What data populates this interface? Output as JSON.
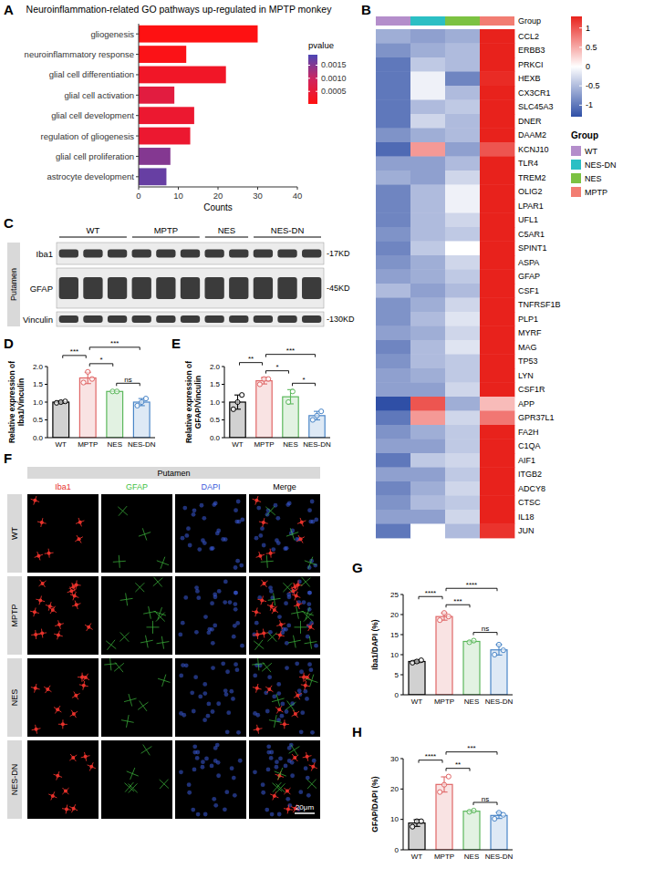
{
  "chart_data": [
    {
      "type": "bar",
      "panel_label": "A",
      "title": "Neuroinflammation-related GO pathways up-regulated in MPTP monkey",
      "orientation": "horizontal",
      "categories": [
        "gliogenesis",
        "neuroinflammatory response",
        "glial cell differentiation",
        "glial cell activation",
        "glial cell development",
        "regulation of gliogenesis",
        "glial cell proliferation",
        "astrocyte development"
      ],
      "values": [
        30,
        12,
        22,
        9,
        14,
        13,
        8,
        7
      ],
      "color_values": [
        5e-05,
        0.0001,
        0.0003,
        0.0006,
        0.0004,
        0.0004,
        0.0015,
        0.0017
      ],
      "color_range": [
        2e-05,
        0.0019
      ],
      "color_ticks": [
        0.0005,
        {
          "value": 0.001,
          "label": "0.0010"
        },
        0.0015
      ],
      "color_label": "pvalue",
      "xlabel": "Counts",
      "xlim": [
        0,
        40
      ],
      "xticks": [
        0,
        10,
        20,
        30,
        40
      ],
      "grid": false
    },
    {
      "type": "heatmap",
      "panel_label": "B",
      "rows": [
        "CCL2",
        "ERBB3",
        "PRKCI",
        "HEXB",
        "CX3CR1",
        "SLC45A3",
        "DNER",
        "DAAM2",
        "KCNJ10",
        "TLR4",
        "TREM2",
        "OLIG2",
        "LPAR1",
        "UFL1",
        "C5AR1",
        "SPINT1",
        "ASPA",
        "GFAP",
        "CSF1",
        "TNFRSF1B",
        "PLP1",
        "MYRF",
        "MAG",
        "TP53",
        "LYN",
        "CSF1R",
        "APP",
        "GPR37L1",
        "FA2H",
        "C1QA",
        "AIF1",
        "ITGB2",
        "ADCY8",
        "CTSC",
        "IL18",
        "JUN"
      ],
      "series": [
        {
          "name": "WT",
          "color": "#b48ecb",
          "values": [
            -0.6,
            -0.8,
            -1.0,
            -1.0,
            -1.0,
            -1.0,
            -1.0,
            -0.8,
            -1.1,
            -0.7,
            -0.6,
            -0.9,
            -0.9,
            -0.9,
            -0.8,
            -0.9,
            -0.8,
            -0.7,
            -0.5,
            -0.8,
            -0.8,
            -0.7,
            -0.9,
            -0.8,
            -0.7,
            -0.7,
            -1.3,
            -1.0,
            -0.8,
            -0.7,
            -1.0,
            -0.7,
            -0.9,
            -0.8,
            -0.7,
            -1.0
          ]
        },
        {
          "name": "NES-DN",
          "color": "#2bbfc4",
          "values": [
            -0.7,
            -0.6,
            -0.4,
            -0.1,
            -0.1,
            -0.5,
            -0.3,
            -0.6,
            0.6,
            -0.7,
            -0.7,
            -0.5,
            -0.5,
            -0.5,
            -0.5,
            -0.4,
            -0.6,
            -0.6,
            -0.7,
            -0.6,
            -0.5,
            -0.6,
            -0.5,
            -0.5,
            -0.6,
            -0.7,
            1.0,
            0.6,
            -0.6,
            -0.7,
            -0.4,
            -0.7,
            -0.6,
            -0.5,
            -0.7,
            0.0
          ]
        },
        {
          "name": "NES",
          "color": "#7cc242",
          "values": [
            -0.6,
            -0.5,
            -0.5,
            -0.9,
            -0.5,
            -0.4,
            -0.5,
            -0.5,
            -0.7,
            -0.5,
            -0.3,
            -0.1,
            -0.1,
            -0.3,
            -0.4,
            0.0,
            -0.3,
            -0.4,
            -0.5,
            -0.3,
            -0.2,
            -0.3,
            -0.2,
            -0.4,
            -0.4,
            -0.3,
            -0.6,
            -0.3,
            -0.4,
            -0.4,
            -0.3,
            -0.4,
            -0.3,
            -0.4,
            -0.3,
            -0.5
          ]
        },
        {
          "name": "MPTP",
          "color": "#f27d72",
          "values": [
            1.3,
            1.3,
            1.3,
            1.25,
            1.3,
            1.3,
            1.3,
            1.3,
            1.0,
            1.3,
            1.3,
            1.3,
            1.3,
            1.3,
            1.3,
            1.3,
            1.3,
            1.3,
            1.3,
            1.3,
            1.3,
            1.3,
            1.3,
            1.3,
            1.3,
            1.3,
            0.4,
            0.8,
            1.3,
            1.3,
            1.3,
            1.3,
            1.3,
            1.3,
            1.3,
            1.2
          ]
        }
      ],
      "group_label": "Group",
      "legend_title": "Group",
      "color_range": [
        -1.3,
        1.3
      ],
      "color_ticks": [
        1,
        0.5,
        0,
        -0.5,
        -1
      ]
    },
    {
      "type": "bar",
      "panel_label": "D",
      "ylabel": "Relative expression of Iba1/Vinculin",
      "categories": [
        "WT",
        "MPTP",
        "NES",
        "NES-DN"
      ],
      "values": [
        1.0,
        1.68,
        1.3,
        1.0
      ],
      "errors": [
        0.03,
        0.16,
        0.0,
        0.1
      ],
      "points": [
        [
          0.98,
          1.0,
          1.02
        ],
        [
          1.55,
          1.85,
          1.65
        ],
        [
          1.3,
          1.3
        ],
        [
          0.9,
          1.0,
          1.1
        ]
      ],
      "colors": [
        "#000000",
        "#e06666",
        "#5cb85c",
        "#4a86c8"
      ],
      "ylim": [
        0,
        2
      ],
      "yticks": [
        {
          "value": 0,
          "label": "0.0"
        },
        {
          "value": 0.5,
          "label": "0.5"
        },
        {
          "value": 1,
          "label": "1.0"
        },
        {
          "value": 1.5,
          "label": "1.5"
        },
        {
          "value": 2,
          "label": "2.0"
        }
      ],
      "grid": false,
      "comparisons": [
        {
          "groups": [
            2,
            3
          ],
          "label": "ns"
        },
        {
          "groups": [
            1,
            2
          ],
          "label": "*"
        },
        {
          "groups": [
            0,
            1
          ],
          "label": "***"
        },
        {
          "groups": [
            1,
            3
          ],
          "label": "***"
        }
      ]
    },
    {
      "type": "bar",
      "panel_label": "E",
      "ylabel": "Relative expression of GFAP/Vinculin",
      "categories": [
        "WT",
        "MPTP",
        "NES",
        "NES-DN"
      ],
      "values": [
        1.0,
        1.6,
        1.15,
        0.62
      ],
      "errors": [
        0.2,
        0.09,
        0.2,
        0.12
      ],
      "points": [
        [
          0.8,
          1.0,
          1.2
        ],
        [
          1.5,
          1.65,
          1.65
        ],
        [
          1.0,
          1.3
        ],
        [
          0.5,
          0.62,
          0.74
        ]
      ],
      "colors": [
        "#000000",
        "#e06666",
        "#5cb85c",
        "#4a86c8"
      ],
      "ylim": [
        0,
        2
      ],
      "yticks": [
        {
          "value": 0,
          "label": "0.0"
        },
        {
          "value": 0.5,
          "label": "0.5"
        },
        {
          "value": 1,
          "label": "1.0"
        },
        {
          "value": 1.5,
          "label": "1.5"
        },
        {
          "value": 2,
          "label": "2.0"
        }
      ],
      "grid": false,
      "comparisons": [
        {
          "groups": [
            2,
            3
          ],
          "label": "*"
        },
        {
          "groups": [
            1,
            2
          ],
          "label": "*"
        },
        {
          "groups": [
            0,
            1
          ],
          "label": "**"
        },
        {
          "groups": [
            1,
            3
          ],
          "label": "***"
        }
      ]
    },
    {
      "type": "bar",
      "panel_label": "G",
      "ylabel": "Iba1/DAPI (%)",
      "categories": [
        "WT",
        "MPTP",
        "NES",
        "NES-DN"
      ],
      "values": [
        8.3,
        19.5,
        13.3,
        11.2
      ],
      "errors": [
        0.3,
        0.9,
        0.2,
        1.3
      ],
      "points": [
        [
          8.0,
          8.3,
          8.6
        ],
        [
          18.6,
          20.4,
          19.5
        ],
        [
          13.1,
          13.5
        ],
        [
          10.0,
          12.5,
          11.1
        ]
      ],
      "colors": [
        "#000000",
        "#e06666",
        "#5cb85c",
        "#4a86c8"
      ],
      "ylim": [
        0,
        25
      ],
      "yticks": [
        0,
        5,
        10,
        15,
        20,
        25
      ],
      "grid": false,
      "comparisons": [
        {
          "groups": [
            2,
            3
          ],
          "label": "ns"
        },
        {
          "groups": [
            1,
            2
          ],
          "label": "***"
        },
        {
          "groups": [
            0,
            1
          ],
          "label": "****"
        },
        {
          "groups": [
            1,
            3
          ],
          "label": "****"
        }
      ]
    },
    {
      "type": "bar",
      "panel_label": "H",
      "ylabel": "GFAP/DAPI (%)",
      "categories": [
        "WT",
        "MPTP",
        "NES",
        "NES-DN"
      ],
      "values": [
        8.8,
        21.5,
        12.7,
        11.3
      ],
      "errors": [
        1.1,
        2.5,
        0.3,
        1.0
      ],
      "points": [
        [
          7.6,
          9.4,
          9.4
        ],
        [
          19.0,
          21.4,
          24.1
        ],
        [
          12.5,
          12.9
        ],
        [
          10.2,
          12.2,
          11.5
        ]
      ],
      "colors": [
        "#000000",
        "#e06666",
        "#5cb85c",
        "#4a86c8"
      ],
      "ylim": [
        0,
        30
      ],
      "yticks": [
        0,
        10,
        20,
        30
      ],
      "grid": false,
      "comparisons": [
        {
          "groups": [
            2,
            3
          ],
          "label": "ns"
        },
        {
          "groups": [
            1,
            2
          ],
          "label": "**"
        },
        {
          "groups": [
            0,
            1
          ],
          "label": "****"
        },
        {
          "groups": [
            1,
            3
          ],
          "label": "***"
        }
      ]
    }
  ],
  "blot": {
    "panel_label": "C",
    "region": "Putamen",
    "groups": [
      {
        "name": "WT",
        "lanes": 3
      },
      {
        "name": "MPTP",
        "lanes": 3
      },
      {
        "name": "NES",
        "lanes": 2
      },
      {
        "name": "NES-DN",
        "lanes": 3
      }
    ],
    "proteins": [
      {
        "name": "Iba1",
        "size": "-17KD"
      },
      {
        "name": "GFAP",
        "size": "-45KD"
      },
      {
        "name": "Vinculin",
        "size": "-130KD"
      }
    ]
  },
  "images": {
    "panel_label": "F",
    "region": "Putamen",
    "rows": [
      "WT",
      "MPTP",
      "NES",
      "NES-DN"
    ],
    "columns": [
      {
        "name": "Iba1",
        "color": "#e8322b"
      },
      {
        "name": "GFAP",
        "color": "#3fbf3f"
      },
      {
        "name": "DAPI",
        "color": "#3b5bdb"
      },
      {
        "name": "Merge",
        "color": "#000000"
      }
    ],
    "scale_bar": "20μm"
  }
}
